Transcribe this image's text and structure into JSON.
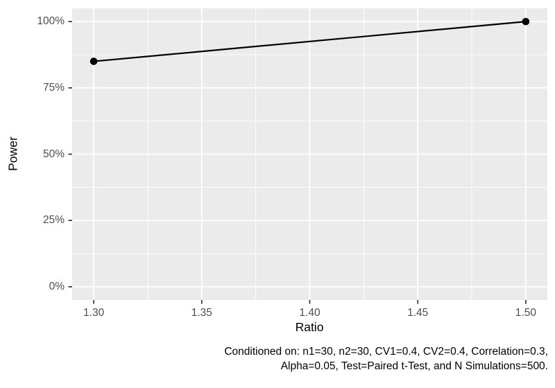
{
  "chart_data": {
    "type": "line",
    "title": "",
    "xlabel": "Ratio",
    "ylabel": "Power",
    "series": [
      {
        "name": "Power",
        "x": [
          1.3,
          1.5
        ],
        "y": [
          0.85,
          1.0
        ]
      }
    ],
    "x_ticks": [
      1.3,
      1.35,
      1.4,
      1.45,
      1.5
    ],
    "x_tick_labels": [
      "1.30",
      "1.35",
      "1.40",
      "1.45",
      "1.50"
    ],
    "y_ticks": [
      0,
      0.25,
      0.5,
      0.75,
      1.0
    ],
    "y_tick_labels": [
      "0%",
      "25%",
      "50%",
      "75%",
      "100%"
    ],
    "x_minor_ticks": [
      1.325,
      1.375,
      1.425,
      1.475
    ],
    "y_minor_ticks": [
      0.125,
      0.375,
      0.625,
      0.875
    ],
    "xlim": [
      1.29,
      1.51
    ],
    "ylim": [
      -0.05,
      1.05
    ],
    "grid": true,
    "legend_position": "none",
    "panel_bg": "#EBEBEB",
    "grid_color": "#FFFFFF",
    "tick_mark_color": "#333333",
    "tick_label_color": "#4D4D4D",
    "line_color": "#000000",
    "point_color": "#000000"
  },
  "caption": {
    "line1": "Conditioned on: n1=30, n2=30, CV1=0.4, CV2=0.4, Correlation=0.3,",
    "line2": "Alpha=0.05, Test=Paired t-Test, and N Simulations=500."
  }
}
